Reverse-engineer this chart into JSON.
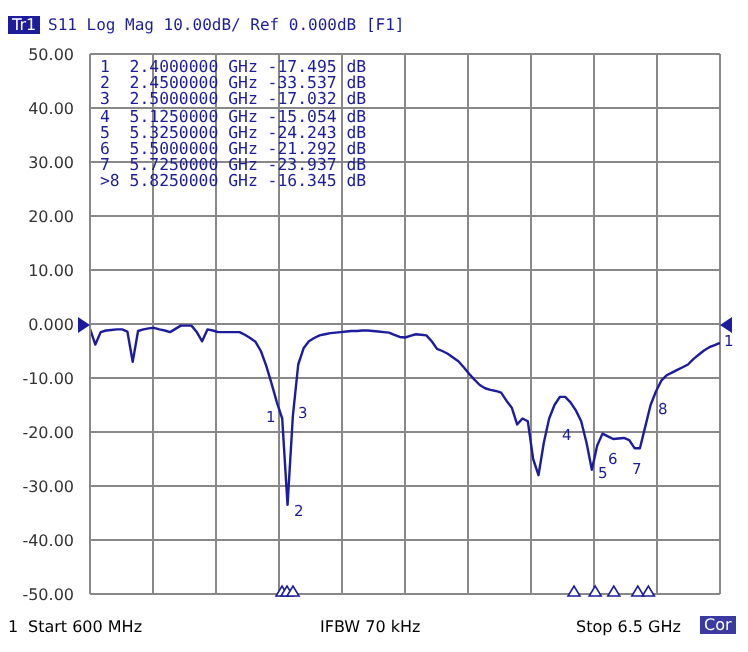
{
  "chart_data": {
    "type": "line",
    "title": "S11 Log Mag 10.00dB/ Ref 0.000dB [F1]",
    "categories": [
      null,
      null,
      null,
      null,
      null,
      null,
      null,
      null,
      null,
      null,
      null,
      null,
      null,
      null,
      null,
      null,
      null,
      null,
      null,
      null,
      null,
      null,
      null,
      null,
      null,
      null,
      null,
      null,
      null,
      null,
      null,
      null,
      null,
      null,
      null,
      null,
      null,
      null,
      null,
      null,
      null,
      null,
      null,
      null,
      null,
      null,
      null,
      null,
      null,
      null,
      null,
      null,
      null,
      null,
      null,
      null,
      null,
      null,
      null,
      null,
      null,
      null,
      null,
      null,
      null,
      null,
      null,
      null,
      null,
      null,
      null,
      null,
      null,
      null,
      null,
      null,
      null,
      null,
      null,
      null,
      null,
      null,
      null,
      null,
      null,
      null,
      null,
      null,
      null,
      null,
      null,
      null,
      null,
      null,
      null,
      null,
      null,
      null,
      null,
      null,
      null,
      null,
      null,
      null,
      null,
      null,
      null,
      null,
      null,
      null,
      null,
      null,
      null,
      null,
      null,
      null,
      null,
      null,
      null
    ],
    "series": [
      {
        "color": "#1c1c9c",
        "values": [
          -0.9,
          -3.8,
          -1.5,
          -1.2,
          -1.1,
          -1,
          -1,
          -1.4,
          -7,
          -1.3,
          -1,
          -0.8,
          -0.7,
          -1,
          -1.2,
          -1.5,
          -0.9,
          -0.3,
          -0.3,
          -0.3,
          -1.5,
          -3.2,
          -1,
          -1.2,
          -1.5,
          -1.5,
          -1.5,
          -1.5,
          -1.5,
          -2,
          -2.6,
          -3.3,
          -5,
          -7.7,
          -11,
          -14.5,
          -17.5,
          -33.5,
          -17,
          -7.5,
          -4.5,
          -3.2,
          -2.6,
          -2.1,
          -1.9,
          -1.7,
          -1.6,
          -1.5,
          -1.4,
          -1.3,
          -1.3,
          -1.2,
          -1.2,
          -1.3,
          -1.4,
          -1.5,
          -1.6,
          -2,
          -2.4,
          -2.5,
          -2.2,
          -1.9,
          -2,
          -2.1,
          -3.2,
          -4.6,
          -5,
          -5.5,
          -6.2,
          -6.9,
          -8,
          -9.2,
          -10.3,
          -11.3,
          -11.9,
          -12.2,
          -12.4,
          -12.7,
          -14.2,
          -15.5,
          -18.6,
          -17.5,
          -18,
          -25,
          -28,
          -22,
          -17.5,
          -15,
          -13.5,
          -13.5,
          -14.5,
          -16,
          -18,
          -22,
          -27,
          -22.5,
          -20.3,
          -20.8,
          -21.3,
          -21.2,
          -21.1,
          -21.5,
          -23,
          -23,
          -19,
          -15,
          -12.5,
          -10.5,
          -9.5,
          -9,
          -8.5,
          -8,
          -7.5,
          -6.5,
          -5.7,
          -4.9,
          -4.3,
          -3.9,
          -3.5
        ]
      }
    ],
    "ylim": [
      -50,
      50
    ],
    "yticks": [
      {
        "value": 50,
        "label": "50.00"
      },
      {
        "value": 40,
        "label": "40.00"
      },
      {
        "value": 30,
        "label": "30.00"
      },
      {
        "value": 20,
        "label": "20.00"
      },
      {
        "value": 10,
        "label": "10.00"
      },
      {
        "value": 0,
        "label": "0.000"
      },
      {
        "value": -10,
        "label": "-10.00"
      },
      {
        "value": -20,
        "label": "-20.00"
      },
      {
        "value": -30,
        "label": "-30.00"
      },
      {
        "value": -40,
        "label": "-40.00"
      },
      {
        "value": -50,
        "label": "-50.00"
      }
    ],
    "tick_labels": "y",
    "grid": true,
    "legend": false,
    "marker": "none",
    "line_style": "solid",
    "annotations": [
      "Tr1",
      "1  2.4000000 GHz -17.495 dB",
      "2  2.4500000 GHz -33.537 dB",
      "3  2.5000000 GHz -17.032 dB",
      "4  5.1250000 GHz -15.054 dB",
      "5  5.3250000 GHz -24.243 dB",
      "6  5.5000000 GHz -21.292 dB",
      "7  5.7250000 GHz -23.937 dB",
      ">8 5.8250000 GHz -16.345 dB",
      "1",
      "Start 600 MHz",
      "IFBW 70 kHz",
      "Stop 6.5 GHz",
      "Cor",
      "1",
      "2",
      "3",
      "4",
      "5",
      "6",
      "7",
      "8",
      "1"
    ]
  }
}
